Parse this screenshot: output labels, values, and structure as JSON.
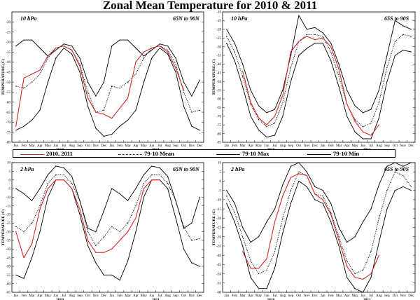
{
  "title": "Zonal Mean Temperature for 2010 & 2011",
  "colors": {
    "obs": "#d62828",
    "mean": "#000000",
    "max": "#000000",
    "min": "#000000"
  },
  "legend": {
    "obs": "2010, 2011",
    "mean": "79-10 Mean",
    "max": "79-10 Max",
    "min": "79-10 Min"
  },
  "chart_data": [
    {
      "type": "line",
      "pressure": "10 hPa",
      "region": "65N to 90N",
      "ylabel": "TEMPERATURE (C)",
      "ylim": [
        -80,
        -15
      ],
      "yticks": [
        -80,
        -75,
        -70,
        -65,
        -60,
        -55,
        -50,
        -45,
        -40,
        -35,
        -30,
        -25,
        -20
      ],
      "months": [
        "Jan",
        "Feb",
        "Mar",
        "Apr",
        "May",
        "Jun",
        "Jul",
        "Aug",
        "Sep",
        "Oct",
        "Nov",
        "Dec",
        "Jan",
        "Feb",
        "Mar",
        "Apr",
        "May",
        "Jun",
        "Jul",
        "Aug",
        "Sep",
        "Oct",
        "Nov",
        "Dec"
      ],
      "years": [
        "2010",
        "2011"
      ],
      "x_month_index": [
        0,
        1,
        2,
        3,
        4,
        5,
        6,
        7,
        8,
        9,
        10,
        11,
        12,
        13,
        14,
        15,
        16,
        17,
        18,
        19,
        20,
        21,
        22,
        23
      ],
      "series": [
        {
          "name": "79-10 Max",
          "key": "max",
          "values": [
            -32,
            -29,
            -29,
            -33,
            -37,
            -34,
            -31,
            -32,
            -38,
            -50,
            -57,
            -50,
            -32,
            -29,
            -29,
            -33,
            -37,
            -34,
            -31,
            -32,
            -38,
            -50,
            -57,
            -49
          ]
        },
        {
          "name": "79-10 Mean",
          "key": "mean",
          "values": [
            -52,
            -53,
            -50,
            -46,
            -38,
            -33,
            -32,
            -34,
            -41,
            -55,
            -65,
            -64,
            -52,
            -53,
            -50,
            -46,
            -38,
            -33,
            -32,
            -34,
            -41,
            -55,
            -65,
            -64
          ]
        },
        {
          "name": "79-10 Min",
          "key": "min",
          "values": [
            -74,
            -72,
            -69,
            -64,
            -50,
            -38,
            -33,
            -36,
            -45,
            -62,
            -73,
            -77,
            -76,
            -72,
            -69,
            -64,
            -50,
            -38,
            -33,
            -36,
            -45,
            -62,
            -72,
            -74
          ]
        },
        {
          "name": "2010, 2011",
          "key": "obs",
          "values": [
            -72,
            -48,
            -46,
            -44,
            -37,
            -33,
            -32,
            -34,
            -42,
            -58,
            -65,
            -66,
            -68,
            -63,
            -58,
            -40,
            -35,
            -33,
            -32,
            -35,
            -43,
            -54,
            null,
            null
          ]
        }
      ]
    },
    {
      "type": "line",
      "pressure": "10 hPa",
      "region": "65S to 90S",
      "ylabel": "TEMPERATURE (C)",
      "ylim": [
        -85,
        -10
      ],
      "yticks": [
        -85,
        -80,
        -75,
        -70,
        -65,
        -60,
        -55,
        -50,
        -45,
        -40,
        -35,
        -30,
        -25,
        -20,
        -15,
        -10
      ],
      "months": [
        "Jan",
        "Feb",
        "Mar",
        "Apr",
        "May",
        "Jun",
        "Jul",
        "Aug",
        "Sep",
        "Oct",
        "Nov",
        "Dec",
        "Jan",
        "Feb",
        "Mar",
        "Apr",
        "May",
        "Jun",
        "Jul",
        "Aug",
        "Sep",
        "Oct",
        "Nov",
        "Dec"
      ],
      "years": [
        "2010",
        "2011"
      ],
      "x_month_index": [
        0,
        1,
        2,
        3,
        4,
        5,
        6,
        7,
        8,
        9,
        10,
        11,
        12,
        13,
        14,
        15,
        16,
        17,
        18,
        19,
        20,
        21,
        22,
        23
      ],
      "series": [
        {
          "name": "79-10 Max",
          "key": "max",
          "values": [
            -20,
            -28,
            -40,
            -55,
            -64,
            -68,
            -66,
            -55,
            -35,
            -12,
            -20,
            -19,
            -22,
            -28,
            -40,
            -55,
            -64,
            -68,
            -66,
            -55,
            -35,
            -15,
            -18,
            -20
          ]
        },
        {
          "name": "79-10 Mean",
          "key": "mean",
          "values": [
            -24,
            -33,
            -47,
            -63,
            -72,
            -76,
            -74,
            -62,
            -42,
            -27,
            -23,
            -23,
            -24,
            -33,
            -47,
            -63,
            -72,
            -76,
            -74,
            -62,
            -42,
            -27,
            -23,
            -24
          ]
        },
        {
          "name": "79-10 Min",
          "key": "min",
          "values": [
            -28,
            -38,
            -53,
            -70,
            -78,
            -82,
            -81,
            -70,
            -50,
            -35,
            -31,
            -28,
            -28,
            -38,
            -53,
            -70,
            -79,
            -83,
            -83,
            -71,
            -50,
            -35,
            -32,
            -33
          ]
        },
        {
          "name": "2010, 2011",
          "key": "obs",
          "values": [
            null,
            null,
            -44,
            -62,
            -71,
            -75,
            -70,
            -58,
            -33,
            -27,
            -24,
            -26,
            -25,
            -30,
            -43,
            -63,
            -73,
            -79,
            -81,
            -75,
            null,
            null,
            null,
            null
          ]
        }
      ]
    },
    {
      "type": "line",
      "pressure": "2 hPa",
      "region": "65N to 90N",
      "ylabel": "TEMPERATURE (C)",
      "ylim": [
        -65,
        10
      ],
      "yticks": [
        -65,
        -60,
        -55,
        -50,
        -45,
        -40,
        -35,
        -30,
        -25,
        -20,
        -15,
        -10,
        -5,
        0,
        5,
        10
      ],
      "months": [
        "Jan",
        "Feb",
        "Mar",
        "Apr",
        "May",
        "Jun",
        "Jul",
        "Aug",
        "Sep",
        "Oct",
        "Nov",
        "Dec",
        "Jan",
        "Feb",
        "Mar",
        "Apr",
        "May",
        "Jun",
        "Jul",
        "Aug",
        "Sep",
        "Oct",
        "Nov",
        "Dec"
      ],
      "years": [
        "2010",
        "2011"
      ],
      "x_month_index": [
        0,
        1,
        2,
        3,
        4,
        5,
        6,
        7,
        8,
        9,
        10,
        11,
        12,
        13,
        14,
        15,
        16,
        17,
        18,
        19,
        20,
        21,
        22,
        23
      ],
      "series": [
        {
          "name": "79-10 Max",
          "key": "max",
          "values": [
            -5,
            -8,
            -12,
            -5,
            3,
            8,
            7,
            2,
            -12,
            -28,
            -30,
            -18,
            -5,
            -8,
            -12,
            -5,
            3,
            8,
            7,
            2,
            -12,
            -28,
            -25,
            -10
          ]
        },
        {
          "name": "79-10 Mean",
          "key": "mean",
          "values": [
            -27,
            -30,
            -25,
            -15,
            -2,
            3,
            3,
            -2,
            -12,
            -30,
            -38,
            -33,
            -27,
            -30,
            -25,
            -15,
            -2,
            3,
            3,
            -2,
            -12,
            -27,
            -35,
            -34
          ]
        },
        {
          "name": "79-10 Min",
          "key": "min",
          "values": [
            -55,
            -57,
            -45,
            -30,
            -10,
            0,
            0,
            -5,
            -20,
            -38,
            -48,
            -55,
            -55,
            -58,
            -47,
            -30,
            -10,
            0,
            0,
            -5,
            -22,
            -40,
            -48,
            -50
          ]
        },
        {
          "name": "2010, 2011",
          "key": "obs",
          "values": [
            -30,
            -45,
            -37,
            -17,
            -5,
            0,
            0,
            -5,
            -17,
            -35,
            -42,
            -42,
            -40,
            -35,
            -30,
            -22,
            -5,
            0,
            0,
            null,
            null,
            null,
            null,
            null
          ]
        }
      ]
    },
    {
      "type": "line",
      "pressure": "2 hPa",
      "region": "65S to 90S",
      "ylabel": "TEMPERATURE (C)",
      "ylim": [
        -60,
        10
      ],
      "yticks": [
        -60,
        -55,
        -50,
        -45,
        -40,
        -35,
        -30,
        -25,
        -20,
        -15,
        -10,
        -5,
        0,
        5,
        10
      ],
      "months": [
        "Jan",
        "Feb",
        "Mar",
        "Apr",
        "May",
        "Jun",
        "Jul",
        "Aug",
        "Sep",
        "Oct",
        "Nov",
        "Dec",
        "Jan",
        "Feb",
        "Mar",
        "Apr",
        "May",
        "Jun",
        "Jul",
        "Aug",
        "Sep",
        "Oct",
        "Nov",
        "Dec"
      ],
      "years": [
        "2010",
        "2011"
      ],
      "x_month_index": [
        0,
        1,
        2,
        3,
        4,
        5,
        6,
        7,
        8,
        9,
        10,
        11,
        12,
        13,
        14,
        15,
        16,
        17,
        18,
        19,
        20,
        21,
        22,
        23
      ],
      "series": [
        {
          "name": "79-10 Max",
          "key": "max",
          "values": [
            -5,
            -12,
            -25,
            -33,
            -30,
            -22,
            -15,
            -2,
            8,
            10,
            5,
            -3,
            -5,
            -12,
            -25,
            -33,
            -30,
            -22,
            -15,
            -2,
            8,
            10,
            8,
            10
          ]
        },
        {
          "name": "79-10 Mean",
          "key": "mean",
          "values": [
            -8,
            -17,
            -30,
            -43,
            -50,
            -48,
            -38,
            -20,
            -5,
            5,
            3,
            -7,
            -8,
            -17,
            -30,
            -43,
            -50,
            -48,
            -38,
            -20,
            -5,
            5,
            3,
            -3
          ]
        },
        {
          "name": "79-10 Min",
          "key": "min",
          "values": [
            -12,
            -22,
            -35,
            -52,
            -58,
            -58,
            -47,
            -28,
            -12,
            0,
            -3,
            -10,
            -12,
            -22,
            -35,
            -52,
            -58,
            -60,
            -52,
            -33,
            -15,
            -5,
            -3,
            -5
          ]
        },
        {
          "name": "2010, 2011",
          "key": "obs",
          "values": [
            null,
            null,
            -38,
            -47,
            -47,
            -42,
            -22,
            -8,
            2,
            4,
            3,
            -7,
            -10,
            -18,
            -32,
            -46,
            -52,
            -53,
            -50,
            -40,
            null,
            null,
            null,
            null
          ]
        }
      ]
    }
  ]
}
